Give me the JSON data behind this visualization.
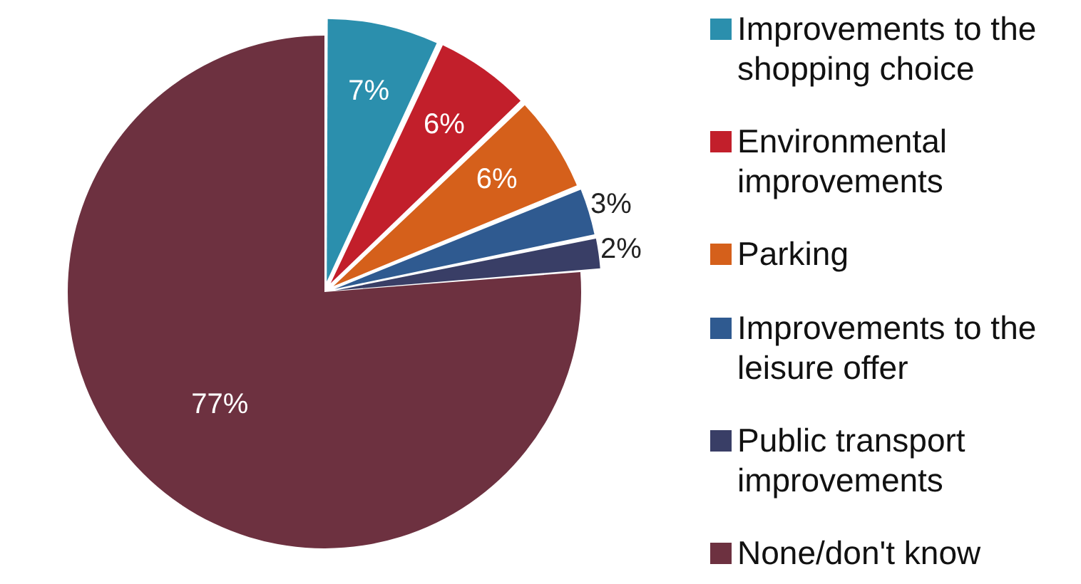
{
  "chart_data": {
    "type": "pie",
    "categories": [
      "Improvements to the shopping choice",
      "Environmental improvements",
      "Parking",
      "Improvements to the leisure offer",
      "Public transport improvements",
      "None/don't know"
    ],
    "values": [
      7,
      6,
      6,
      3,
      2,
      77
    ],
    "colors": [
      "#2b8fad",
      "#c21f2b",
      "#d5601b",
      "#2f5a90",
      "#393e66",
      "#6d3140"
    ],
    "value_labels": [
      "7%",
      "6%",
      "6%",
      "3%",
      "2%",
      "77%"
    ],
    "legend": "right"
  }
}
